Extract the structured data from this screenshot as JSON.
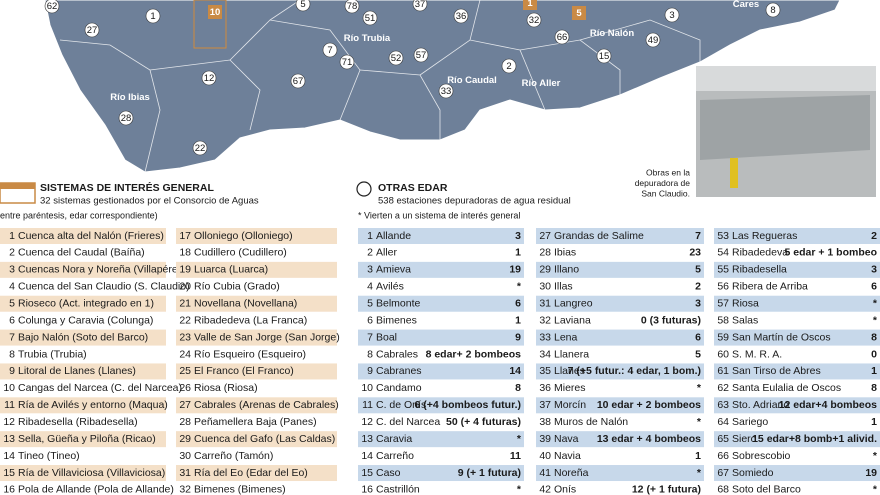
{
  "map": {
    "labels": [
      "62",
      "1",
      "10",
      "27",
      "5",
      "78",
      "51",
      "37",
      "36",
      "1",
      "32",
      "5",
      "3",
      "8",
      "Cares",
      "Río Trubia",
      "Río Nalón",
      "57",
      "66",
      "49",
      "7",
      "71",
      "52",
      "2",
      "15",
      "Río Caudal",
      "Río Aller",
      "12",
      "67",
      "33",
      "Río Ibias",
      "28",
      "22"
    ],
    "caption": [
      "Obras en la",
      "depuradora de",
      "San Claudio."
    ]
  },
  "sistemas": {
    "title": "SISTEMAS DE INTERÉS GENERAL",
    "subtitle": "32 sistemas gestionados por el Consorcio de Aguas",
    "note": "(entre paréntesis, edar correspondiente)",
    "rows": [
      [
        1,
        "Cuenca alta del Nalón (Frieres)"
      ],
      [
        2,
        "Cuenca del Caudal (Baíña)"
      ],
      [
        3,
        "Cuencas Nora y Noreña (Villapérez)"
      ],
      [
        4,
        "Cuenca del San Claudio (S. Claudio)"
      ],
      [
        5,
        "Rioseco (Act. integrado en 1)"
      ],
      [
        6,
        "Colunga y Caravia (Colunga)"
      ],
      [
        7,
        "Bajo Nalón (Soto del Barco)"
      ],
      [
        8,
        "Trubia (Trubia)"
      ],
      [
        9,
        "Litoral de Llanes (Llanes)"
      ],
      [
        10,
        "Cangas del Narcea (C. del Narcea)"
      ],
      [
        11,
        "Ría de Avilés y entorno (Maqua)"
      ],
      [
        12,
        "Ribadesella (Ribadesella)"
      ],
      [
        13,
        "Sella, Güeña y Piloña (Ricao)"
      ],
      [
        14,
        "Tineo (Tineo)"
      ],
      [
        15,
        "Ría de Villaviciosa (Villaviciosa)"
      ],
      [
        16,
        "Pola de Allande (Pola de Allande)"
      ],
      [
        17,
        "Olloniego (Olloniego)"
      ],
      [
        18,
        "Cudillero (Cudillero)"
      ],
      [
        19,
        "Luarca (Luarca)"
      ],
      [
        20,
        "Río Cubia (Grado)"
      ],
      [
        21,
        "Novellana (Novellana)"
      ],
      [
        22,
        "Ribadedeva (La Franca)"
      ],
      [
        23,
        "Valle de San Jorge (San Jorge)"
      ],
      [
        24,
        "Río Esqueiro (Esqueiro)"
      ],
      [
        25,
        "El Franco (El Franco)"
      ],
      [
        26,
        "Riosa (Riosa)"
      ],
      [
        27,
        "Cabrales (Arenas de Cabrales)"
      ],
      [
        28,
        "Peñamellera Baja (Panes)"
      ],
      [
        29,
        "Cuenca del Gafo (Las Caldas)"
      ],
      [
        30,
        "Carreño (Tamón)"
      ],
      [
        31,
        "Ría del Eo (Edar del Eo)"
      ],
      [
        32,
        "Bimenes (Bimenes)"
      ]
    ]
  },
  "otras": {
    "title": "OTRAS EDAR",
    "subtitle": "538 estaciones depuradoras de agua residual",
    "note": "* Vierten a un sistema de interés general",
    "rows": [
      [
        1,
        "Allande",
        "3"
      ],
      [
        2,
        "Aller",
        "1"
      ],
      [
        3,
        "Amieva",
        "19"
      ],
      [
        4,
        "Avilés",
        "*"
      ],
      [
        5,
        "Belmonte",
        "6"
      ],
      [
        6,
        "Bimenes",
        "1"
      ],
      [
        7,
        "Boal",
        "9"
      ],
      [
        8,
        "Cabrales",
        "8 edar+ 2 bombeos"
      ],
      [
        9,
        "Cabranes",
        "14"
      ],
      [
        10,
        "Candamo",
        "8"
      ],
      [
        11,
        "C. de Onís",
        "6 (+4 bombeos futur.)"
      ],
      [
        12,
        "C. del Narcea",
        "50 (+ 4 futuras)"
      ],
      [
        13,
        "Caravia",
        "*"
      ],
      [
        14,
        "Carreño",
        "11"
      ],
      [
        15,
        "Caso",
        "9 (+ 1 futura)"
      ],
      [
        16,
        "Castrillón",
        "*"
      ],
      [
        27,
        "Grandas de Salime",
        "7"
      ],
      [
        28,
        "Ibias",
        "23"
      ],
      [
        29,
        "Illano",
        "5"
      ],
      [
        30,
        "Illas",
        "2"
      ],
      [
        31,
        "Langreo",
        "3"
      ],
      [
        32,
        "Laviana",
        "0 (3 futuras)"
      ],
      [
        33,
        "Lena",
        "6"
      ],
      [
        34,
        "Llanera",
        "5"
      ],
      [
        35,
        "Llanes",
        "7 (+5 futur.: 4 edar, 1 bom.)"
      ],
      [
        36,
        "Mieres",
        "*"
      ],
      [
        37,
        "Morcín",
        "10 edar + 2 bombeos"
      ],
      [
        38,
        "Muros de Nalón",
        "*"
      ],
      [
        39,
        "Nava",
        "13 edar + 4 bombeos"
      ],
      [
        40,
        "Navia",
        "1"
      ],
      [
        41,
        "Noreña",
        "*"
      ],
      [
        42,
        "Onís",
        "12 (+ 1 futura)"
      ],
      [
        53,
        "Las Regueras",
        "2"
      ],
      [
        54,
        "Ribadedeva",
        "5 edar + 1 bombeo"
      ],
      [
        55,
        "Ribadesella",
        "3"
      ],
      [
        56,
        "Ribera de Arriba",
        "6"
      ],
      [
        57,
        "Riosa",
        "*"
      ],
      [
        58,
        "Salas",
        "*"
      ],
      [
        59,
        "San Martín de Oscos",
        "8"
      ],
      [
        60,
        "S. M. R. A.",
        "0"
      ],
      [
        61,
        "San Tirso de Abres",
        "1"
      ],
      [
        62,
        "Santa Eulalia de Oscos",
        "8"
      ],
      [
        63,
        "Sto. Adriano",
        "12 edar+4 bombeos"
      ],
      [
        64,
        "Sariego",
        "1"
      ],
      [
        65,
        "Siero",
        "15 edar+8 bomb+1 alivid."
      ],
      [
        66,
        "Sobrescobio",
        "*"
      ],
      [
        67,
        "Somiedo",
        "19"
      ],
      [
        68,
        "Soto del Barco",
        "*"
      ]
    ]
  }
}
